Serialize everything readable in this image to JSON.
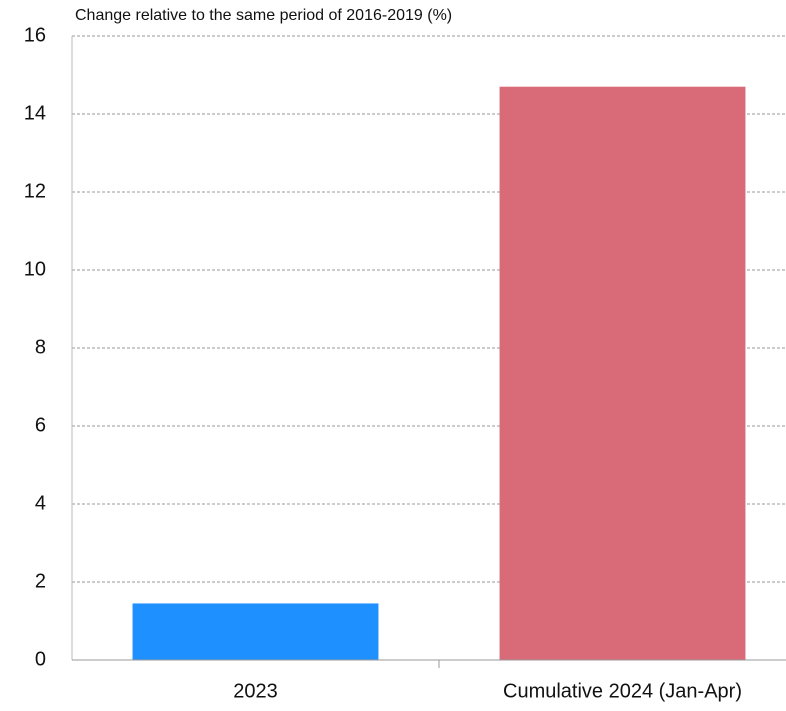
{
  "chart_data": {
    "type": "bar",
    "title": "Change relative to the same period of 2016-2019 (%)",
    "categories": [
      "2023",
      "Cumulative 2024 (Jan-Apr)"
    ],
    "values": [
      1.45,
      14.7
    ],
    "colors": [
      "#1e90ff",
      "#d96b78"
    ],
    "ylim": [
      0,
      16
    ],
    "yticks": [
      0,
      2,
      4,
      6,
      8,
      10,
      12,
      14,
      16
    ],
    "grid": true
  }
}
